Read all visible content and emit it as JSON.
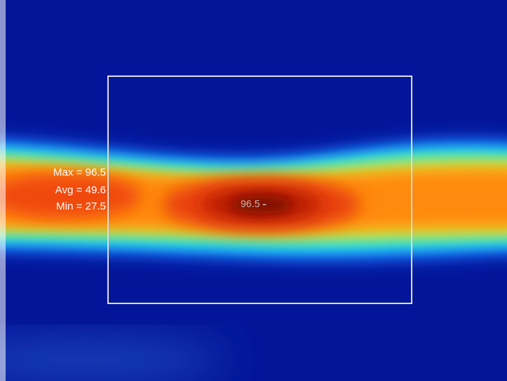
{
  "stats": {
    "max": "Max = 96.5",
    "avg": "Avg = 49.6",
    "min": "Min = 27.5"
  },
  "spot": {
    "label": "96.5"
  }
}
